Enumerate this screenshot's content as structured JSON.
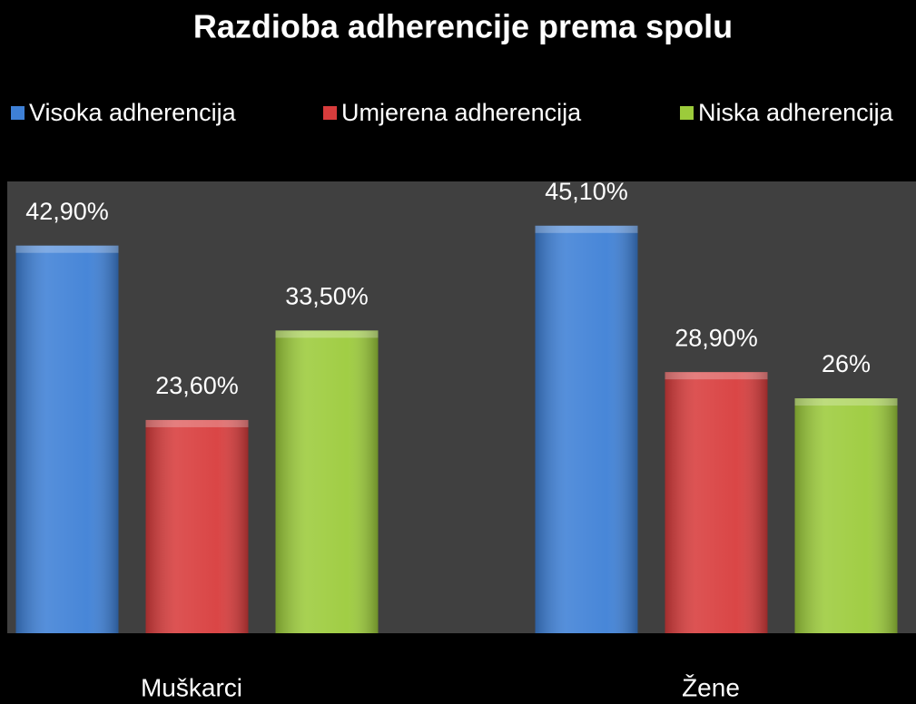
{
  "chart_data": {
    "type": "bar",
    "title": "Razdioba adherencije prema spolu",
    "categories": [
      "Muškarci",
      "Žene"
    ],
    "series": [
      {
        "name": "Visoka adherencija",
        "color": "#3e80d6",
        "values": [
          42.9,
          45.1
        ],
        "value_labels": [
          "42,90%",
          "45,10%"
        ]
      },
      {
        "name": "Umjerena adherencija",
        "color": "#d83c3c",
        "values": [
          23.6,
          28.9
        ],
        "value_labels": [
          "23,60%",
          "28,90%"
        ]
      },
      {
        "name": "Niska adherencija",
        "color": "#9ccb3b",
        "values": [
          33.5,
          26
        ],
        "value_labels": [
          "33,50%",
          "26%"
        ]
      }
    ],
    "ylim": [
      0,
      50
    ],
    "legend": "top"
  }
}
